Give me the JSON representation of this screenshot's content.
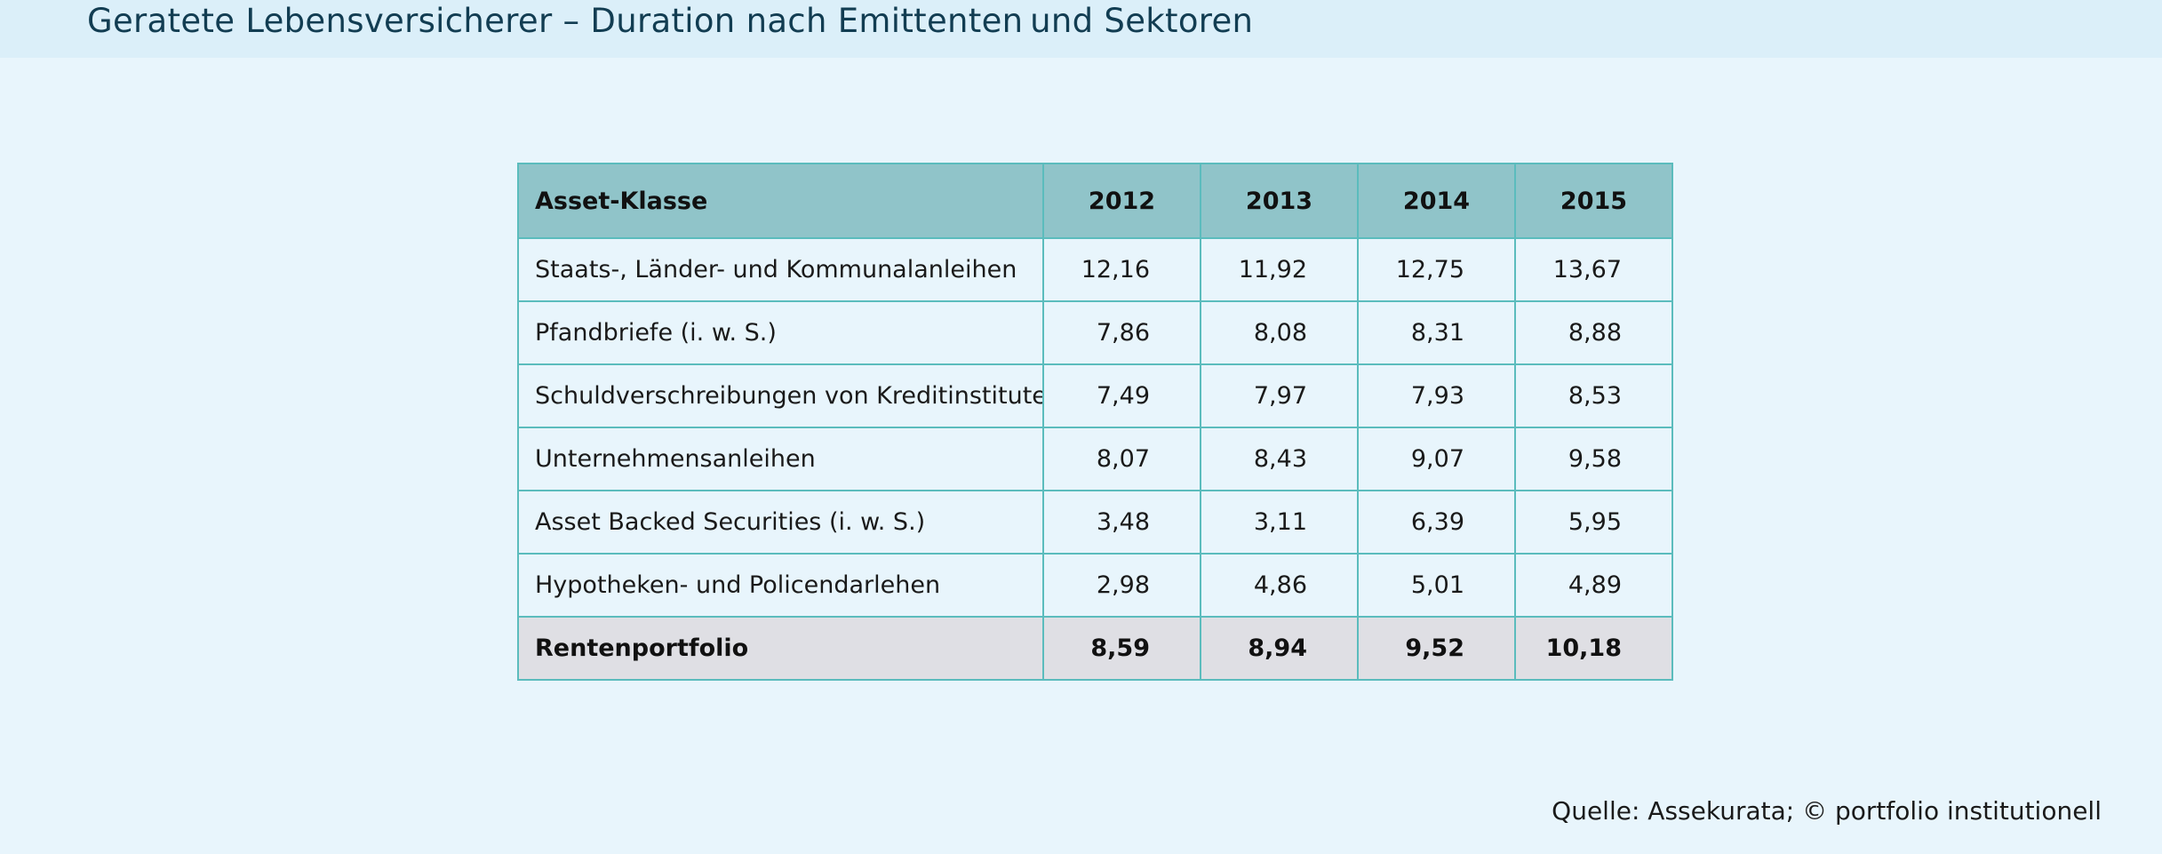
{
  "title": "Geratete Lebensversicherer – Duration nach Emittenten und Sektoren",
  "table": {
    "header": [
      "Asset-Klasse",
      "2012",
      "2013",
      "2014",
      "2015"
    ],
    "rows": [
      [
        "Staats-, Länder- und Kommunalanleihen",
        "12,16",
        "11,92",
        "12,75",
        "13,67"
      ],
      [
        "Pfandbriefe (i. w. S.)",
        "7,86",
        "8,08",
        "8,31",
        "8,88"
      ],
      [
        "Schuldverschreibungen von Kreditinstituten",
        "7,49",
        "7,97",
        "7,93",
        "8,53"
      ],
      [
        "Unternehmensanleihen",
        "8,07",
        "8,43",
        "9,07",
        "9,58"
      ],
      [
        "Asset Backed Securities (i. w. S.)",
        "3,48",
        "3,11",
        "6,39",
        "5,95"
      ],
      [
        "Hypotheken- und Policendarlehen",
        "2,98",
        "4,86",
        "5,01",
        "4,89"
      ]
    ],
    "total": [
      "Rentenportfolio",
      "8,59",
      "8,94",
      "9,52",
      "10,18"
    ]
  },
  "source": "Quelle: Assekurata; © portfolio institutionell",
  "colors": {
    "page_background": "#e8f5fc",
    "title_bar": "#dbeff9",
    "header_fill": "#90c4c9",
    "total_fill": "#dfdfe4",
    "grid": "#5bbcbd",
    "title_text": "#123d52"
  }
}
